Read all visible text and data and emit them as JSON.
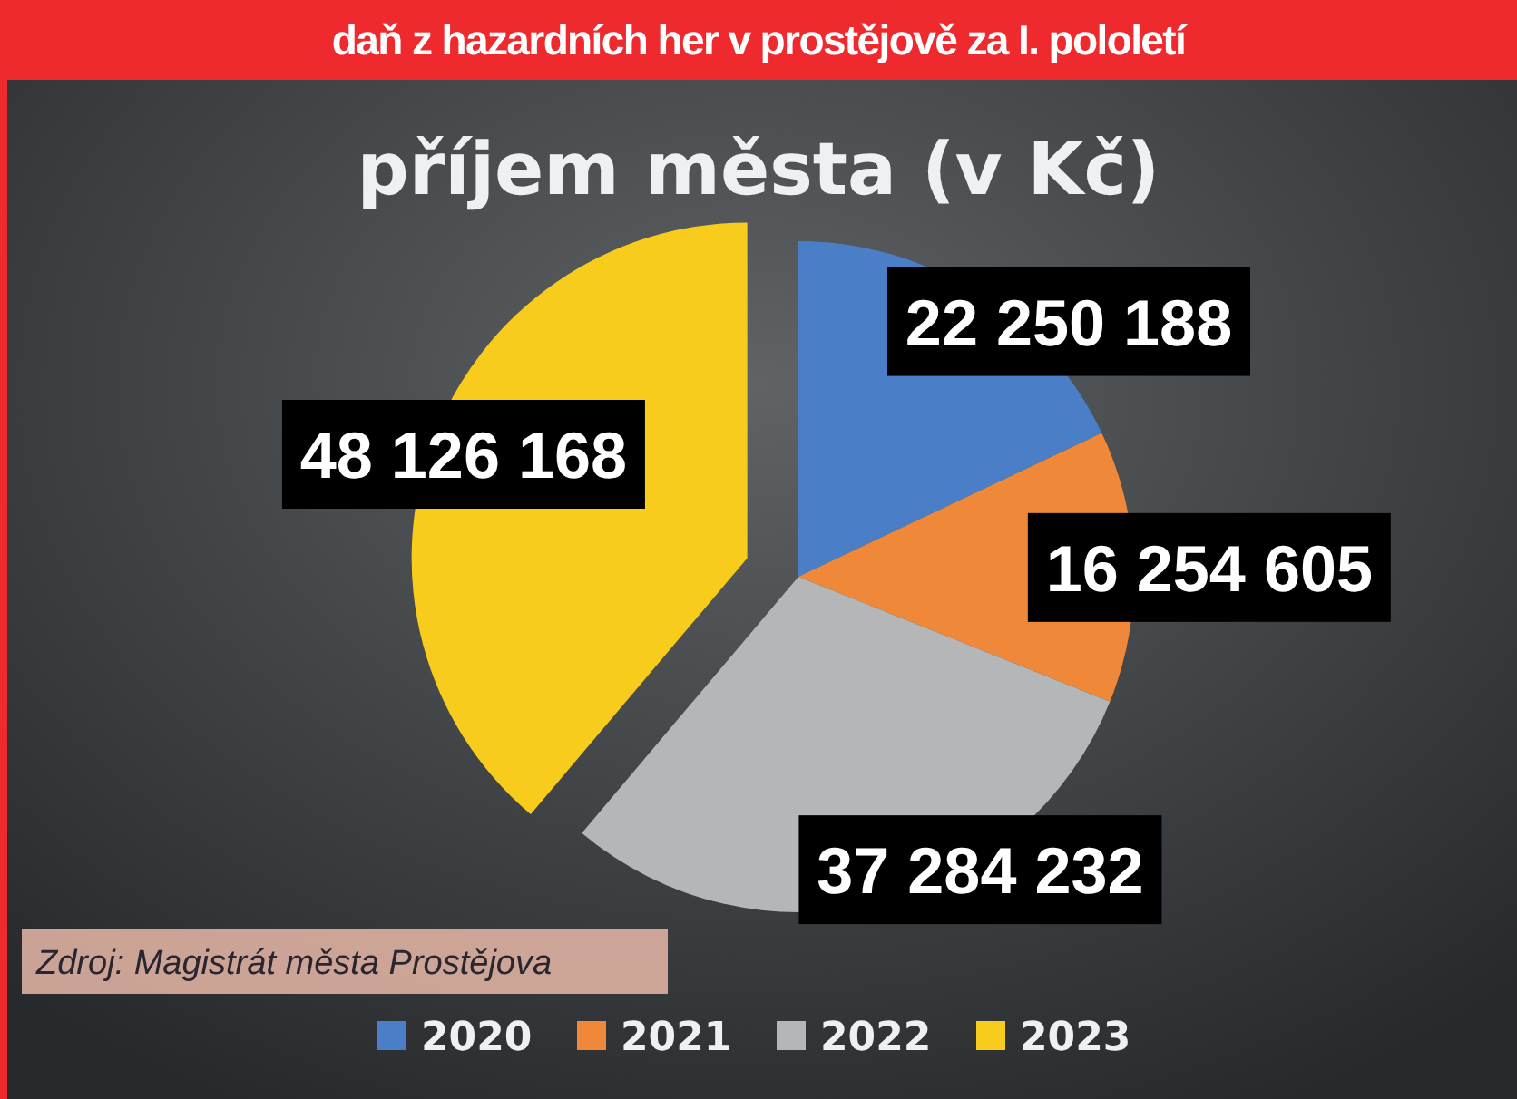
{
  "chart_data": {
    "type": "pie",
    "title": "daň z hazardních her v prostějově za I. pololetí",
    "subtitle": "příjem města (v Kč)",
    "categories": [
      "2020",
      "2021",
      "2022",
      "2023"
    ],
    "values": [
      22250188,
      16254605,
      37284232,
      48126168
    ],
    "value_labels": [
      "22 250 188",
      "16 254 605",
      "37 284 232",
      "48 126 168"
    ],
    "colors": [
      "#4a7ec6",
      "#f0883a",
      "#b4b6b8",
      "#f8cc1c"
    ],
    "legend": "bottom",
    "annotations": [
      "Zdroj: Magistrát města Prostějova"
    ]
  }
}
